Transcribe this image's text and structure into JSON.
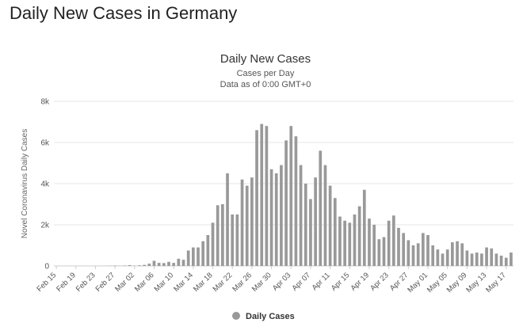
{
  "page": {
    "heading": "Daily New Cases in Germany"
  },
  "chart_data": {
    "type": "bar",
    "title": "Daily New Cases",
    "subtitle_lines": [
      "Cases per Day",
      "Data as of 0:00 GMT+0"
    ],
    "ylabel": "Novel Coronavirus Daily Cases",
    "xlabel": "",
    "ylim": [
      0,
      8000
    ],
    "yticks": [
      0,
      2000,
      4000,
      6000,
      8000
    ],
    "ytick_labels": [
      "0",
      "2k",
      "4k",
      "6k",
      "8k"
    ],
    "xtick_labels": [
      "Feb 15",
      "Feb 19",
      "Feb 23",
      "Feb 27",
      "Mar 02",
      "Mar 06",
      "Mar 10",
      "Mar 14",
      "Mar 18",
      "Mar 22",
      "Mar 26",
      "Mar 30",
      "Apr 03",
      "Apr 07",
      "Apr 11",
      "Apr 15",
      "Apr 19",
      "Apr 23",
      "Apr 27",
      "May 01",
      "May 05",
      "May 09",
      "May 13",
      "May 17"
    ],
    "xtick_every": 4,
    "categories": [
      "Feb 15",
      "Feb 16",
      "Feb 17",
      "Feb 18",
      "Feb 19",
      "Feb 20",
      "Feb 21",
      "Feb 22",
      "Feb 23",
      "Feb 24",
      "Feb 25",
      "Feb 26",
      "Feb 27",
      "Feb 28",
      "Feb 29",
      "Mar 01",
      "Mar 02",
      "Mar 03",
      "Mar 04",
      "Mar 05",
      "Mar 06",
      "Mar 07",
      "Mar 08",
      "Mar 09",
      "Mar 10",
      "Mar 11",
      "Mar 12",
      "Mar 13",
      "Mar 14",
      "Mar 15",
      "Mar 16",
      "Mar 17",
      "Mar 18",
      "Mar 19",
      "Mar 20",
      "Mar 21",
      "Mar 22",
      "Mar 23",
      "Mar 24",
      "Mar 25",
      "Mar 26",
      "Mar 27",
      "Mar 28",
      "Mar 29",
      "Mar 30",
      "Mar 31",
      "Apr 01",
      "Apr 02",
      "Apr 03",
      "Apr 04",
      "Apr 05",
      "Apr 06",
      "Apr 07",
      "Apr 08",
      "Apr 09",
      "Apr 10",
      "Apr 11",
      "Apr 12",
      "Apr 13",
      "Apr 14",
      "Apr 15",
      "Apr 16",
      "Apr 17",
      "Apr 18",
      "Apr 19",
      "Apr 20",
      "Apr 21",
      "Apr 22",
      "Apr 23",
      "Apr 24",
      "Apr 25",
      "Apr 26",
      "Apr 27",
      "Apr 28",
      "Apr 29",
      "Apr 30",
      "May 01",
      "May 02",
      "May 03",
      "May 04",
      "May 05",
      "May 06",
      "May 07",
      "May 08",
      "May 09",
      "May 10",
      "May 11",
      "May 12",
      "May 13",
      "May 14",
      "May 15",
      "May 16",
      "May 17",
      "May 18"
    ],
    "series": [
      {
        "name": "Daily Cases",
        "values": [
          0,
          0,
          0,
          0,
          0,
          0,
          0,
          0,
          0,
          0,
          3,
          10,
          20,
          5,
          20,
          40,
          10,
          30,
          50,
          110,
          250,
          150,
          140,
          200,
          150,
          350,
          300,
          750,
          900,
          900,
          1200,
          1500,
          2100,
          2950,
          3000,
          4500,
          2500,
          2500,
          4200,
          3900,
          4300,
          6600,
          6900,
          6800,
          4700,
          4500,
          4900,
          6100,
          6800,
          6300,
          4900,
          4000,
          3250,
          4300,
          5600,
          4900,
          3900,
          3300,
          2400,
          2200,
          2100,
          2500,
          2900,
          3700,
          2300,
          2000,
          1300,
          1400,
          2200,
          2450,
          1850,
          1600,
          1250,
          1000,
          1100,
          1600,
          1500,
          1000,
          800,
          600,
          800,
          1150,
          1200,
          1100,
          750,
          600,
          650,
          600,
          900,
          850,
          600,
          500,
          400,
          650
        ]
      }
    ],
    "bar_color": "#999999",
    "grid": true,
    "legend_position": "bottom-center"
  }
}
